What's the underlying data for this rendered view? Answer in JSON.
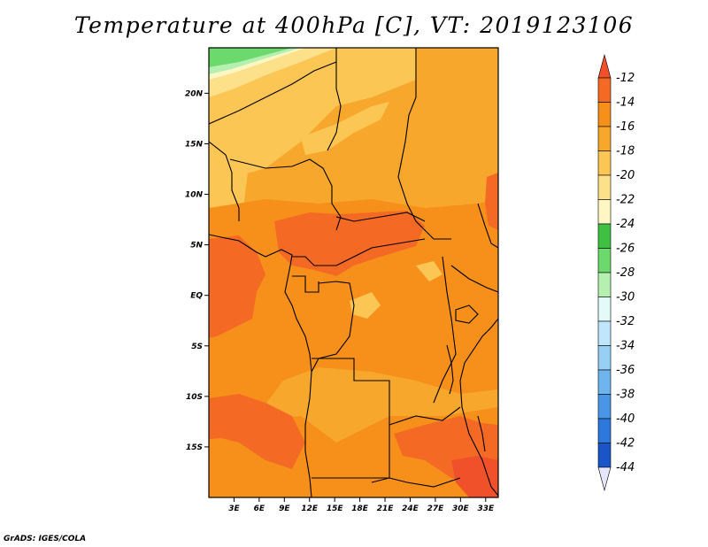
{
  "title": "Temperature at 400hPa [C], VT: 2019123106",
  "credit": "GrADS: IGES/COLA",
  "map": {
    "projection": "latlon",
    "lon_range": [
      0,
      34.5
    ],
    "lat_range": [
      -20,
      24.5
    ],
    "lat_ticks": [
      {
        "value": 20,
        "label": "20N"
      },
      {
        "value": 15,
        "label": "15N"
      },
      {
        "value": 10,
        "label": "10N"
      },
      {
        "value": 5,
        "label": "5N"
      },
      {
        "value": 0,
        "label": "EQ"
      },
      {
        "value": -5,
        "label": "5S"
      },
      {
        "value": -10,
        "label": "10S"
      },
      {
        "value": -15,
        "label": "15S"
      }
    ],
    "lon_ticks": [
      {
        "value": 3,
        "label": "3E"
      },
      {
        "value": 6,
        "label": "6E"
      },
      {
        "value": 9,
        "label": "9E"
      },
      {
        "value": 12,
        "label": "12E"
      },
      {
        "value": 15,
        "label": "15E"
      },
      {
        "value": 18,
        "label": "18E"
      },
      {
        "value": 21,
        "label": "21E"
      },
      {
        "value": 24,
        "label": "24E"
      },
      {
        "value": 27,
        "label": "27E"
      },
      {
        "value": 30,
        "label": "30E"
      },
      {
        "value": 33,
        "label": "33E"
      }
    ]
  },
  "colorbar": {
    "top_arrow_color": "#f0502a",
    "bottom_arrow_color": "#e6e6fa",
    "bins": [
      {
        "color": "#f46a24",
        "label": "-12"
      },
      {
        "color": "#f6901a",
        "label": "-14"
      },
      {
        "color": "#f7a72c",
        "label": "-16"
      },
      {
        "color": "#fbc654",
        "label": "-18"
      },
      {
        "color": "#fde08a",
        "label": "-20"
      },
      {
        "color": "#fef7c4",
        "label": "-22"
      },
      {
        "color": "#3fc042",
        "label": "-24"
      },
      {
        "color": "#6bd96b",
        "label": "-26"
      },
      {
        "color": "#b5f0b0",
        "label": "-28"
      },
      {
        "color": "#e3fbf8",
        "label": "-30"
      },
      {
        "color": "#bfe6fa",
        "label": "-32"
      },
      {
        "color": "#98cff4",
        "label": "-34"
      },
      {
        "color": "#6eb4ee",
        "label": "-36"
      },
      {
        "color": "#4a96e6",
        "label": "-38"
      },
      {
        "color": "#2d78dc",
        "label": "-40"
      },
      {
        "color": "#1a55c8",
        "label": "-42"
      },
      {
        "color": "#0b1a7c",
        "label": "-44"
      }
    ]
  },
  "field_colors": {
    "base": "#f7a72c",
    "warm": "#f6901a",
    "warmer": "#f46a24",
    "hot": "#f0502a",
    "cool": "#fbc654",
    "cooler": "#fde08a",
    "coolest": "#fef7c4",
    "green1": "#b5f0b0",
    "green2": "#6bd96b"
  }
}
